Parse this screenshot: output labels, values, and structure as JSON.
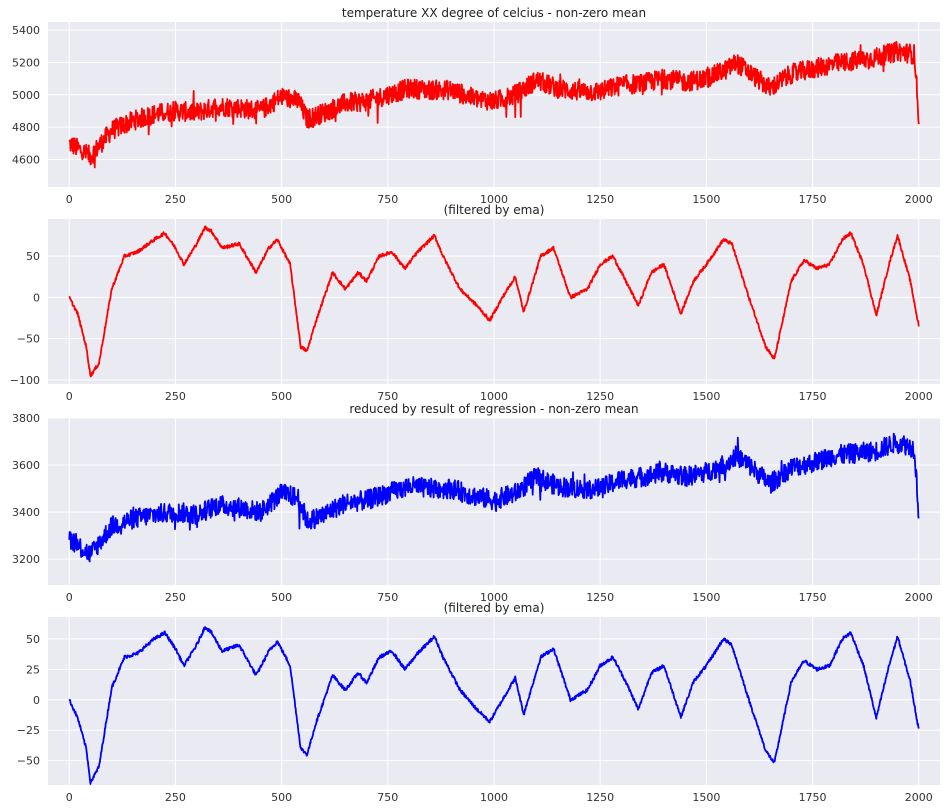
{
  "chart_data": [
    {
      "type": "line",
      "title": "temperature XX degree of celcius - non-zero mean",
      "xlim": [
        -50,
        2050
      ],
      "ylim": [
        4430,
        5450
      ],
      "xticks": [
        0,
        250,
        500,
        750,
        1000,
        1250,
        1500,
        1750,
        2000
      ],
      "yticks": [
        4600,
        4800,
        5000,
        5200,
        5400
      ],
      "grid": true,
      "series": [
        {
          "color": "#ff0000",
          "x": [
            0,
            50,
            100,
            150,
            200,
            250,
            300,
            350,
            400,
            450,
            500,
            540,
            560,
            600,
            650,
            700,
            750,
            800,
            850,
            900,
            950,
            1000,
            1050,
            1100,
            1150,
            1200,
            1250,
            1300,
            1350,
            1400,
            1450,
            1500,
            1550,
            1570,
            1600,
            1650,
            1700,
            1750,
            1800,
            1850,
            1900,
            1950,
            1990,
            2000
          ],
          "y": [
            4700,
            4620,
            4780,
            4840,
            4880,
            4900,
            4890,
            4930,
            4920,
            4900,
            4990,
            4960,
            4850,
            4890,
            4950,
            4960,
            5000,
            5040,
            5030,
            5030,
            4980,
            4960,
            5000,
            5090,
            5040,
            5020,
            5020,
            5060,
            5070,
            5100,
            5080,
            5100,
            5160,
            5200,
            5140,
            5040,
            5130,
            5160,
            5190,
            5210,
            5230,
            5270,
            5250,
            4860
          ]
        }
      ]
    },
    {
      "type": "line",
      "title": "(filtered by ema)",
      "xlim": [
        -50,
        2050
      ],
      "ylim": [
        -105,
        95
      ],
      "xticks": [
        0,
        250,
        500,
        750,
        1000,
        1250,
        1500,
        1750,
        2000
      ],
      "yticks": [
        -100,
        -50,
        0,
        50
      ],
      "grid": true,
      "series": [
        {
          "color": "#ff0000",
          "x": [
            0,
            20,
            40,
            50,
            70,
            100,
            130,
            160,
            200,
            225,
            250,
            270,
            300,
            320,
            335,
            360,
            400,
            440,
            470,
            490,
            520,
            545,
            560,
            580,
            620,
            650,
            680,
            700,
            730,
            760,
            790,
            820,
            860,
            880,
            920,
            960,
            990,
            1020,
            1050,
            1070,
            1110,
            1140,
            1180,
            1220,
            1250,
            1280,
            1310,
            1340,
            1370,
            1400,
            1440,
            1470,
            1500,
            1540,
            1560,
            1600,
            1640,
            1660,
            1700,
            1730,
            1760,
            1790,
            1820,
            1840,
            1870,
            1900,
            1930,
            1950,
            1980,
            2000
          ],
          "y": [
            0,
            -20,
            -60,
            -95,
            -80,
            10,
            50,
            55,
            70,
            78,
            60,
            40,
            65,
            85,
            80,
            60,
            65,
            30,
            60,
            70,
            40,
            -60,
            -65,
            -30,
            30,
            10,
            30,
            20,
            50,
            55,
            35,
            55,
            75,
            50,
            10,
            -10,
            -28,
            0,
            25,
            -18,
            50,
            60,
            0,
            10,
            40,
            50,
            20,
            -10,
            30,
            40,
            -20,
            20,
            40,
            70,
            65,
            0,
            -60,
            -75,
            20,
            45,
            35,
            40,
            70,
            78,
            40,
            -22,
            40,
            75,
            20,
            -35
          ]
        }
      ]
    },
    {
      "type": "line",
      "title": "reduced by result of regression - non-zero mean",
      "xlim": [
        -50,
        2050
      ],
      "ylim": [
        3090,
        3800
      ],
      "xticks": [
        0,
        250,
        500,
        750,
        1000,
        1250,
        1500,
        1750,
        2000
      ],
      "yticks": [
        3200,
        3400,
        3600,
        3800
      ],
      "grid": true,
      "series": [
        {
          "color": "#0000ff",
          "x": [
            0,
            50,
            100,
            150,
            200,
            250,
            300,
            350,
            400,
            450,
            500,
            540,
            560,
            600,
            650,
            700,
            750,
            800,
            850,
            900,
            950,
            1000,
            1050,
            1100,
            1150,
            1200,
            1250,
            1300,
            1350,
            1400,
            1450,
            1500,
            1550,
            1570,
            1600,
            1650,
            1700,
            1750,
            1800,
            1850,
            1900,
            1950,
            1990,
            2000
          ],
          "y": [
            3290,
            3220,
            3340,
            3370,
            3390,
            3400,
            3390,
            3430,
            3420,
            3400,
            3480,
            3460,
            3360,
            3390,
            3440,
            3450,
            3480,
            3510,
            3500,
            3500,
            3470,
            3450,
            3480,
            3550,
            3510,
            3500,
            3500,
            3540,
            3550,
            3570,
            3550,
            3570,
            3610,
            3640,
            3600,
            3520,
            3590,
            3610,
            3640,
            3650,
            3660,
            3700,
            3670,
            3390
          ]
        }
      ]
    },
    {
      "type": "line",
      "title": "(filtered by ema)",
      "xlim": [
        -50,
        2050
      ],
      "ylim": [
        -70,
        68
      ],
      "xticks": [
        0,
        250,
        500,
        750,
        1000,
        1250,
        1500,
        1750,
        2000
      ],
      "yticks": [
        -50,
        -25,
        0,
        25,
        50
      ],
      "grid": true,
      "series": [
        {
          "color": "#0000ff",
          "x": [
            0,
            20,
            40,
            50,
            70,
            100,
            130,
            160,
            200,
            225,
            250,
            270,
            300,
            320,
            335,
            360,
            400,
            440,
            470,
            490,
            520,
            545,
            560,
            580,
            620,
            650,
            680,
            700,
            730,
            760,
            790,
            820,
            860,
            880,
            920,
            960,
            990,
            1020,
            1050,
            1070,
            1110,
            1140,
            1180,
            1220,
            1250,
            1280,
            1310,
            1340,
            1370,
            1400,
            1440,
            1470,
            1500,
            1540,
            1560,
            1600,
            1640,
            1660,
            1700,
            1730,
            1760,
            1790,
            1820,
            1840,
            1870,
            1900,
            1930,
            1950,
            1980,
            2000
          ],
          "y": [
            0,
            -15,
            -40,
            -68,
            -55,
            10,
            35,
            38,
            50,
            55,
            42,
            28,
            45,
            60,
            55,
            40,
            45,
            20,
            40,
            48,
            28,
            -40,
            -45,
            -20,
            20,
            8,
            22,
            14,
            35,
            40,
            25,
            38,
            52,
            35,
            8,
            -8,
            -18,
            0,
            18,
            -12,
            35,
            42,
            0,
            8,
            28,
            35,
            15,
            -8,
            22,
            28,
            -14,
            15,
            28,
            50,
            45,
            0,
            -42,
            -52,
            15,
            32,
            25,
            28,
            50,
            55,
            28,
            -15,
            28,
            52,
            15,
            -25
          ]
        }
      ]
    }
  ]
}
